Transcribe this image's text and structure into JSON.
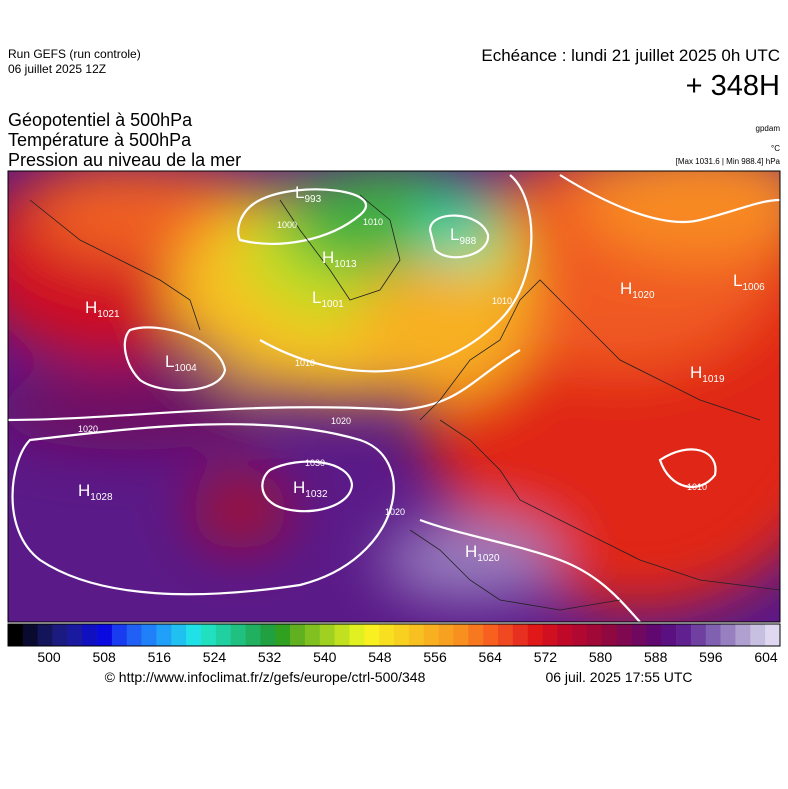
{
  "header": {
    "run": "Run GEFS (run controle)",
    "run_date": "06 juillet 2025 12Z",
    "valid": "Echéance : lundi 21 juillet 2025 0h UTC",
    "lead": "+ 348H",
    "field_1": "Géopotentiel à 500hPa",
    "field_2": "Température à 500hPa",
    "field_3": "Pression au niveau de la mer",
    "unit_1": "gpdam",
    "unit_2": "°C",
    "unit_3": "[Max 1031.6 | Min 988.4] hPa"
  },
  "map": {
    "centers": [
      {
        "type": "L",
        "value": 993
      },
      {
        "type": "L",
        "value": 988
      },
      {
        "type": "H",
        "value": 1013
      },
      {
        "type": "L",
        "value": 1001
      },
      {
        "type": "H",
        "value": 1021
      },
      {
        "type": "L",
        "value": 1004
      },
      {
        "type": "H",
        "value": 1020
      },
      {
        "type": "L",
        "value": 1006
      },
      {
        "type": "H",
        "value": 1019
      },
      {
        "type": "H",
        "value": 1028
      },
      {
        "type": "H",
        "value": 1032
      },
      {
        "type": "H",
        "value": 1020
      }
    ],
    "isobar_labels": [
      1000,
      1010,
      1010,
      1020,
      1020,
      1030,
      1020,
      1010,
      1010
    ]
  },
  "colorbar": {
    "ticks": [
      500,
      508,
      516,
      524,
      532,
      540,
      548,
      556,
      564,
      572,
      580,
      588,
      596,
      604
    ],
    "colors": [
      "#000000",
      "#0a0a30",
      "#14145a",
      "#1a1a80",
      "#1a1aa0",
      "#1010c0",
      "#0a0ae0",
      "#1a3cf0",
      "#2060f5",
      "#2080f8",
      "#20a0f8",
      "#20c0f0",
      "#20e0e8",
      "#20e0c0",
      "#20d0a0",
      "#20c080",
      "#20b060",
      "#20a040",
      "#30a020",
      "#60b020",
      "#80c020",
      "#a0d020",
      "#c0e020",
      "#e0f020",
      "#f8f020",
      "#f8e020",
      "#f8d020",
      "#f8c020",
      "#f8b020",
      "#f8a020",
      "#f89020",
      "#f87820",
      "#f86020",
      "#f04820",
      "#e83020",
      "#e01818",
      "#d01020",
      "#c00828",
      "#b00830",
      "#a00838",
      "#900840",
      "#800850",
      "#700860",
      "#600870",
      "#5a1080",
      "#602090",
      "#7040a0",
      "#8060b0",
      "#9880c0",
      "#b0a0d0",
      "#c8c0e0",
      "#e0d8f0"
    ]
  },
  "footer": {
    "source": "© http://www.infoclimat.fr/z/gefs/europe/ctrl-500/348",
    "generated": "06 juil. 2025 17:55 UTC"
  }
}
